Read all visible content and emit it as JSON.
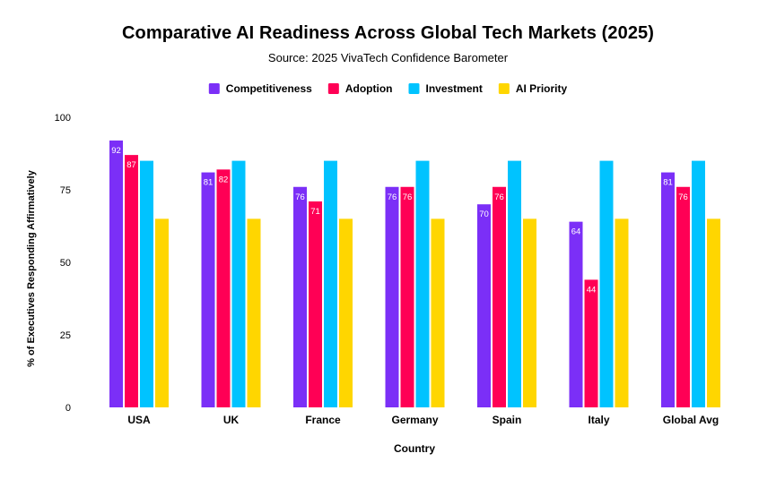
{
  "chart_data": {
    "type": "bar",
    "title": "Comparative AI Readiness Across Global Tech Markets (2025)",
    "subtitle": "Source: 2025 VivaTech Confidence Barometer",
    "xlabel": "Country",
    "ylabel": "% of Executives Responding Affirmatively",
    "ylim": [
      0,
      100
    ],
    "yticks": [
      0,
      25,
      50,
      75,
      100
    ],
    "grid": false,
    "legend_position": "top",
    "categories": [
      "USA",
      "UK",
      "France",
      "Germany",
      "Spain",
      "Italy",
      "Global Avg"
    ],
    "series": [
      {
        "name": "Competitiveness",
        "color": "#7b2ff7",
        "values": [
          92,
          81,
          76,
          76,
          70,
          64,
          81
        ],
        "show_labels": true
      },
      {
        "name": "Adoption",
        "color": "#ff0055",
        "values": [
          87,
          82,
          71,
          76,
          76,
          44,
          76
        ],
        "show_labels": true
      },
      {
        "name": "Investment",
        "color": "#00c3ff",
        "values": [
          85,
          85,
          85,
          85,
          85,
          85,
          85
        ],
        "show_labels": false
      },
      {
        "name": "AI Priority",
        "color": "#ffd600",
        "values": [
          65,
          65,
          65,
          65,
          65,
          65,
          65
        ],
        "show_labels": false
      }
    ]
  }
}
